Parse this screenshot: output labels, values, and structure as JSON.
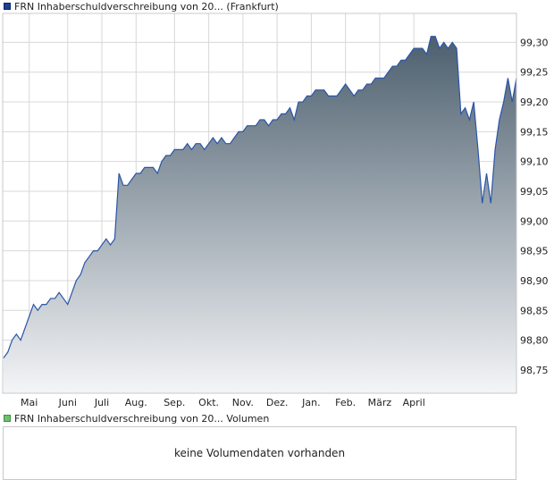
{
  "price_legend": {
    "label": "FRN Inhaberschuldverschreibung von 20... (Frankfurt)",
    "color": "#1f3f8f"
  },
  "volume_legend": {
    "label": "FRN Inhaberschuldverschreibung von 20... Volumen",
    "color": "#6fbf6f"
  },
  "volume_message": "keine Volumendaten vorhanden",
  "chart_data": [
    {
      "type": "area",
      "title": "",
      "xlabel": "",
      "ylabel": "",
      "ylim": [
        98.7,
        99.36
      ],
      "y_ticks": [
        "98,75",
        "98,80",
        "98,85",
        "98,90",
        "98,95",
        "99,00",
        "99,05",
        "99,10",
        "99,15",
        "99,20",
        "99,25",
        "99,30"
      ],
      "x_ticks": [
        "Mai",
        "Juni",
        "Juli",
        "Aug.",
        "Sep.",
        "Okt.",
        "Nov.",
        "Dez.",
        "Jan.",
        "Feb.",
        "März",
        "April"
      ],
      "grid": true,
      "line_color": "#2a55a8",
      "fill_top_color": "#4c5f6e",
      "fill_bottom_color": "#f4f5f7",
      "series": [
        {
          "values": [
            98.77,
            98.78,
            98.8,
            98.81,
            98.8,
            98.82,
            98.84,
            98.86,
            98.85,
            98.86,
            98.86,
            98.87,
            98.87,
            98.88,
            98.87,
            98.86,
            98.88,
            98.9,
            98.91,
            98.93,
            98.94,
            98.95,
            98.95,
            98.96,
            98.97,
            98.96,
            98.97,
            99.08,
            99.06,
            99.06,
            99.07,
            99.08,
            99.08,
            99.09,
            99.09,
            99.09,
            99.08,
            99.1,
            99.11,
            99.11,
            99.12,
            99.12,
            99.12,
            99.13,
            99.12,
            99.13,
            99.13,
            99.12,
            99.13,
            99.14,
            99.13,
            99.14,
            99.13,
            99.13,
            99.14,
            99.15,
            99.15,
            99.16,
            99.16,
            99.16,
            99.17,
            99.17,
            99.16,
            99.17,
            99.17,
            99.18,
            99.18,
            99.19,
            99.17,
            99.2,
            99.2,
            99.21,
            99.21,
            99.22,
            99.22,
            99.22,
            99.21,
            99.21,
            99.21,
            99.22,
            99.23,
            99.22,
            99.21,
            99.22,
            99.22,
            99.23,
            99.23,
            99.24,
            99.24,
            99.24,
            99.25,
            99.26,
            99.26,
            99.27,
            99.27,
            99.28,
            99.29,
            99.29,
            99.29,
            99.28,
            99.31,
            99.31,
            99.29,
            99.3,
            99.29,
            99.3,
            99.29,
            99.18,
            99.19,
            99.17,
            99.2,
            99.12,
            99.03,
            99.08,
            99.03,
            99.12,
            99.17,
            99.2,
            99.24,
            99.2,
            99.24
          ],
          "x_tick_index": [
            6,
            15,
            23,
            31,
            40,
            48,
            56,
            64,
            72,
            80,
            88,
            96
          ]
        }
      ]
    },
    {
      "type": "bar",
      "title": "",
      "series": [],
      "note": "keine Volumendaten vorhanden"
    }
  ]
}
